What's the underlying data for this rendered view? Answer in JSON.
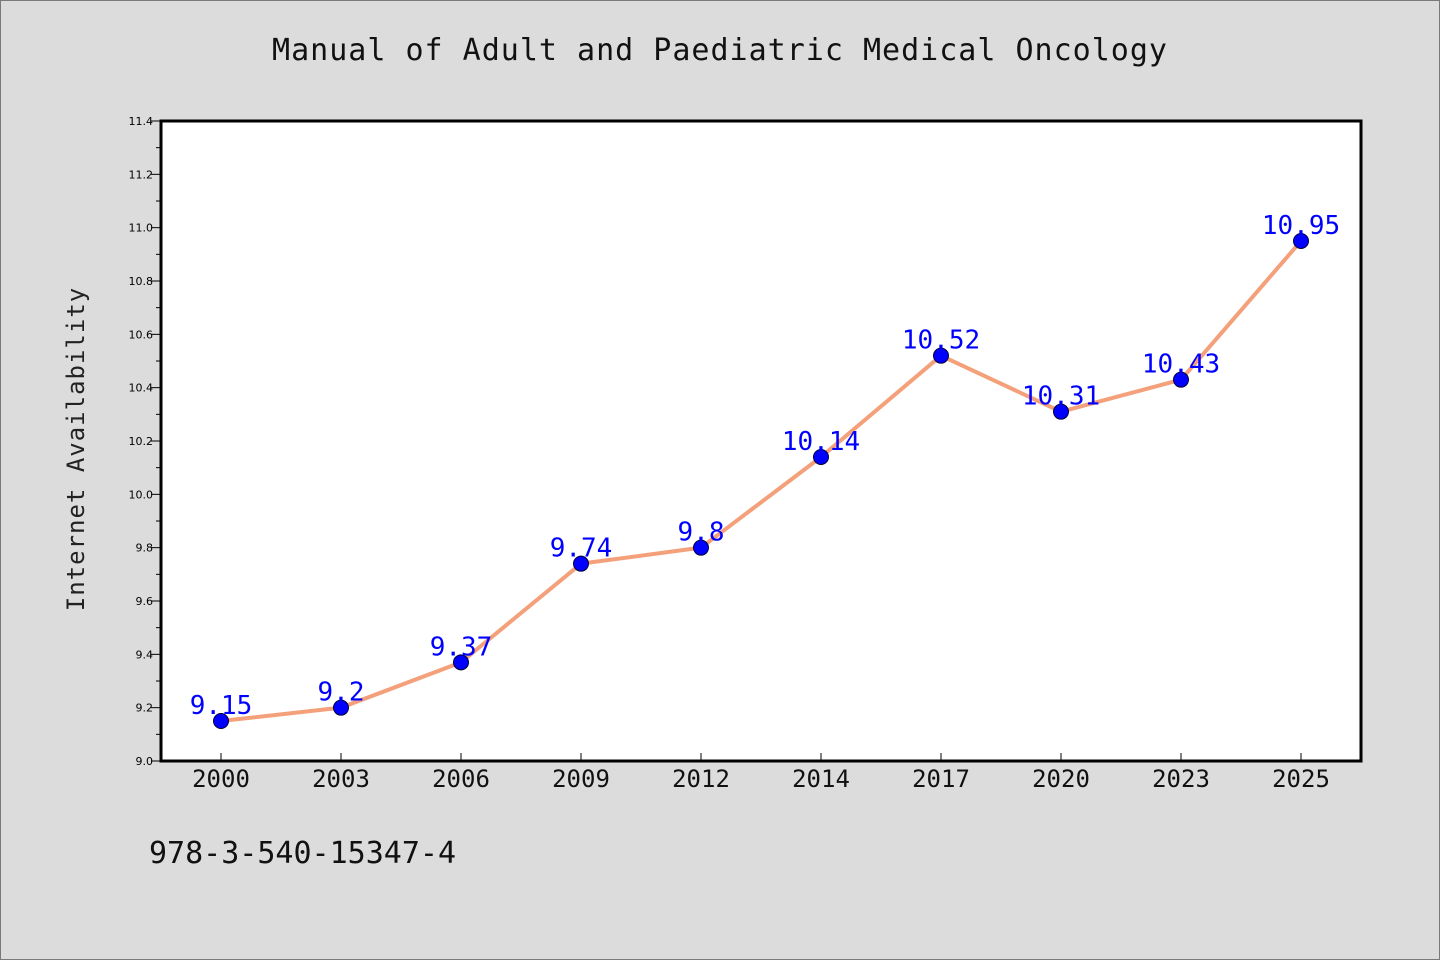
{
  "colors": {
    "background": "#dcdcdc",
    "plot_background": "#ffffff",
    "line": "#f4a07a",
    "marker": "#0000ff",
    "label": "#0000ff"
  },
  "footer": {
    "isbn": "978-3-540-15347-4"
  },
  "chart_data": {
    "type": "line",
    "title": "Manual of Adult and Paediatric Medical Oncology",
    "xlabel": "",
    "ylabel": "Internet Availability",
    "categories": [
      "2000",
      "2003",
      "2006",
      "2009",
      "2012",
      "2014",
      "2017",
      "2020",
      "2023",
      "2025"
    ],
    "series": [
      {
        "values": [
          9.15,
          9.2,
          9.37,
          9.74,
          9.8,
          10.14,
          10.52,
          10.31,
          10.43,
          10.95
        ],
        "labels": [
          "9.15",
          "9.2",
          "9.37",
          "9.74",
          "9.8",
          "10.14",
          "10.52",
          "10.31",
          "10.43",
          "10.95"
        ]
      }
    ],
    "ylim": [
      9.0,
      11.4
    ],
    "yticks": [
      "9.0",
      "9.2",
      "9.4",
      "9.6",
      "9.8",
      "10.0",
      "10.2",
      "10.4",
      "10.6",
      "10.8",
      "11.0",
      "11.2",
      "11.4"
    ],
    "grid": false,
    "legend": "none"
  }
}
